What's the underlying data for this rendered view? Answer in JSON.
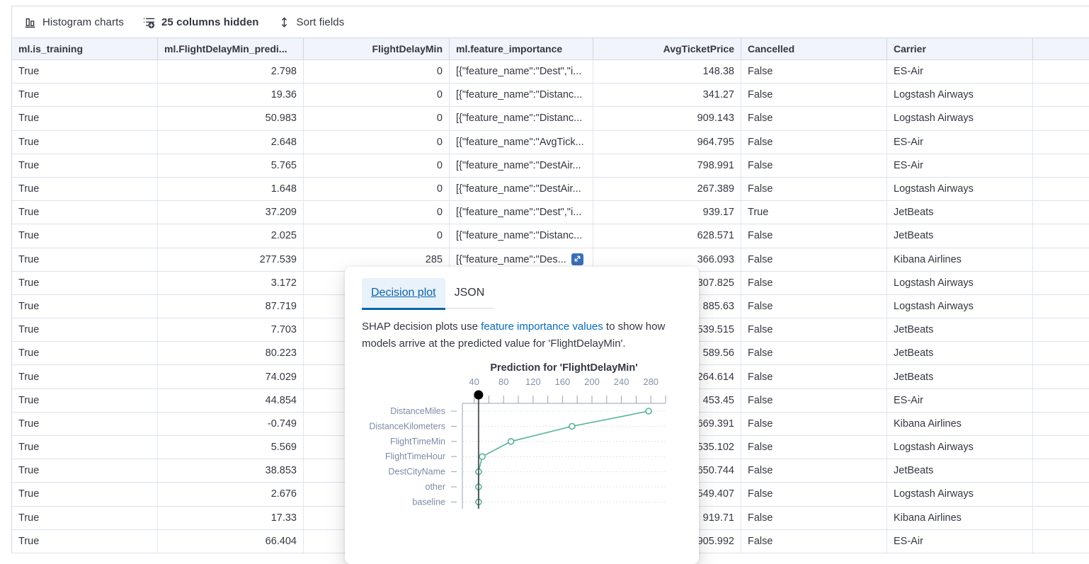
{
  "toolbar": {
    "histogram_label": "Histogram charts",
    "columns_hidden_label": "25 columns hidden",
    "sort_fields_label": "Sort fields"
  },
  "table": {
    "columns": [
      {
        "label": "ml.is_training",
        "header_align": "left",
        "cell_align": "left"
      },
      {
        "label": "ml.FlightDelayMin_predi...",
        "header_align": "left",
        "cell_align": "right"
      },
      {
        "label": "FlightDelayMin",
        "header_align": "right",
        "cell_align": "right"
      },
      {
        "label": "ml.feature_importance",
        "header_align": "left",
        "cell_align": "left"
      },
      {
        "label": "AvgTicketPrice",
        "header_align": "right",
        "cell_align": "right"
      },
      {
        "label": "Cancelled",
        "header_align": "left",
        "cell_align": "left"
      },
      {
        "label": "Carrier",
        "header_align": "left",
        "cell_align": "left"
      },
      {
        "label": "",
        "header_align": "left",
        "cell_align": "left"
      }
    ],
    "rows": [
      {
        "cells": [
          "True",
          "2.798",
          "0",
          "[{\"feature_name\":\"Dest\",\"i...",
          "148.38",
          "False",
          "ES-Air",
          ""
        ]
      },
      {
        "cells": [
          "True",
          "19.36",
          "0",
          "[{\"feature_name\":\"Distanc...",
          "341.27",
          "False",
          "Logstash Airways",
          ""
        ]
      },
      {
        "cells": [
          "True",
          "50.983",
          "0",
          "[{\"feature_name\":\"Distanc...",
          "909.143",
          "False",
          "Logstash Airways",
          ""
        ]
      },
      {
        "cells": [
          "True",
          "2.648",
          "0",
          "[{\"feature_name\":\"AvgTick...",
          "964.795",
          "False",
          "ES-Air",
          ""
        ]
      },
      {
        "cells": [
          "True",
          "5.765",
          "0",
          "[{\"feature_name\":\"DestAir...",
          "798.991",
          "False",
          "ES-Air",
          ""
        ]
      },
      {
        "cells": [
          "True",
          "1.648",
          "0",
          "[{\"feature_name\":\"DestAir...",
          "267.389",
          "False",
          "Logstash Airways",
          ""
        ]
      },
      {
        "cells": [
          "True",
          "37.209",
          "0",
          "[{\"feature_name\":\"Dest\",\"i...",
          "939.17",
          "True",
          "JetBeats",
          ""
        ]
      },
      {
        "cells": [
          "True",
          "2.025",
          "0",
          "[{\"feature_name\":\"Distanc...",
          "628.571",
          "False",
          "JetBeats",
          ""
        ]
      },
      {
        "cells": [
          "True",
          "277.539",
          "285",
          "[{\"feature_name\":\"Des...",
          "366.093",
          "False",
          "Kibana Airlines",
          ""
        ],
        "expand": true
      },
      {
        "cells": [
          "True",
          "3.172",
          "",
          "",
          "307.825",
          "False",
          "Logstash Airways",
          ""
        ]
      },
      {
        "cells": [
          "True",
          "87.719",
          "",
          "",
          "885.63",
          "False",
          "Logstash Airways",
          ""
        ]
      },
      {
        "cells": [
          "True",
          "7.703",
          "",
          "",
          "539.515",
          "False",
          "JetBeats",
          ""
        ]
      },
      {
        "cells": [
          "True",
          "80.223",
          "",
          "",
          "589.56",
          "False",
          "JetBeats",
          ""
        ]
      },
      {
        "cells": [
          "True",
          "74.029",
          "",
          "",
          "264.614",
          "False",
          "JetBeats",
          ""
        ]
      },
      {
        "cells": [
          "True",
          "44.854",
          "",
          "",
          "453.45",
          "False",
          "ES-Air",
          ""
        ]
      },
      {
        "cells": [
          "True",
          "-0.749",
          "",
          "",
          "669.391",
          "False",
          "Kibana Airlines",
          ""
        ]
      },
      {
        "cells": [
          "True",
          "5.569",
          "",
          "",
          "535.102",
          "False",
          "Logstash Airways",
          ""
        ]
      },
      {
        "cells": [
          "True",
          "38.853",
          "",
          "",
          "650.744",
          "False",
          "JetBeats",
          ""
        ]
      },
      {
        "cells": [
          "True",
          "2.676",
          "",
          "",
          "549.407",
          "False",
          "Logstash Airways",
          ""
        ]
      },
      {
        "cells": [
          "True",
          "17.33",
          "",
          "",
          "919.71",
          "False",
          "Kibana Airlines",
          ""
        ]
      },
      {
        "cells": [
          "True",
          "66.404",
          "",
          "",
          "905.992",
          "False",
          "ES-Air",
          ""
        ],
        "partial": true
      }
    ]
  },
  "popover": {
    "tabs": [
      {
        "label": "Decision plot",
        "active": true
      },
      {
        "label": "JSON",
        "active": false
      }
    ],
    "description_prefix": "SHAP decision plots use ",
    "description_link": "feature importance values",
    "description_suffix": " to show how models arrive at the predicted value for 'FlightDelayMin'."
  },
  "chart_data": {
    "type": "line",
    "orientation": "horizontal",
    "title": "Prediction for 'FlightDelayMin'",
    "categories": [
      "DistanceMiles",
      "DistanceKilometers",
      "FlightTimeMin",
      "FlightTimeHour",
      "DestCityName",
      "other",
      "baseline"
    ],
    "values": [
      277,
      173,
      90,
      51,
      46,
      46,
      46
    ],
    "xticks": [
      40,
      80,
      120,
      160,
      200,
      240,
      280
    ],
    "minor_tick_step": 20,
    "xlim": [
      24,
      300
    ],
    "marker_value": 46,
    "grid": "dotted",
    "line_color": "#54B399",
    "marker_color": "#000000",
    "vline_color": "#404348",
    "axis_color": "#98A2B3",
    "label_color": "#7D8BA3",
    "grid_color": "#D3DAE6",
    "title_color": "#343741"
  }
}
